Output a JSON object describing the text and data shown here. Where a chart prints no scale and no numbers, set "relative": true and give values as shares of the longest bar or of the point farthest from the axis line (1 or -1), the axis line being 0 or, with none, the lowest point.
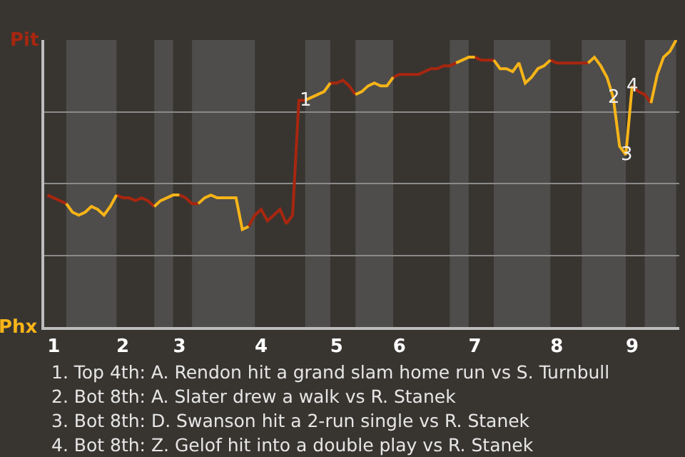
{
  "chart_data": {
    "type": "line",
    "relative": true,
    "categories": [
      null,
      "1",
      null,
      null,
      null,
      null,
      null,
      null,
      null,
      null,
      null,
      null,
      "2",
      null,
      null,
      null,
      null,
      null,
      null,
      null,
      null,
      "3",
      null,
      null,
      null,
      null,
      null,
      null,
      null,
      null,
      null,
      null,
      null,
      null,
      "4",
      null,
      null,
      null,
      null,
      null,
      null,
      null,
      null,
      null,
      null,
      null,
      "5",
      null,
      null,
      null,
      null,
      null,
      null,
      null,
      null,
      null,
      "6",
      null,
      null,
      null,
      null,
      null,
      null,
      null,
      null,
      null,
      null,
      null,
      "7",
      null,
      null,
      null,
      null,
      null,
      null,
      null,
      null,
      null,
      null,
      null,
      null,
      "8",
      null,
      null,
      null,
      null,
      null,
      null,
      null,
      null,
      null,
      null,
      null,
      "9",
      null,
      null,
      null,
      null,
      null,
      null,
      null
    ],
    "grid": "y",
    "marker": "none",
    "line_style": "solid",
    "series": [
      {
        "color": "#a8260f",
        "values": [
          0.46,
          0.45,
          0.44,
          0.43,
          null,
          null,
          null,
          null,
          null,
          null,
          null,
          0.46,
          0.45,
          0.45,
          0.44,
          0.45,
          0.44,
          0.42,
          null,
          null,
          null,
          0.46,
          0.45,
          0.43,
          0.43,
          null,
          null,
          null,
          null,
          null,
          null,
          null,
          0.35,
          0.39,
          0.41,
          0.37,
          0.39,
          0.41,
          0.36,
          0.39,
          0.79,
          0.79,
          null,
          null,
          null,
          0.85,
          0.85,
          0.86,
          0.84,
          0.81,
          null,
          null,
          null,
          null,
          null,
          0.87,
          0.88,
          0.88,
          0.88,
          0.88,
          0.89,
          0.9,
          0.9,
          0.91,
          0.91,
          0.92,
          null,
          null,
          0.94,
          0.93,
          0.93,
          0.93,
          null,
          null,
          null,
          null,
          null,
          null,
          null,
          null,
          0.93,
          0.92,
          0.92,
          0.92,
          0.92,
          0.92,
          0.92,
          null,
          null,
          null,
          null,
          null,
          null,
          0.84,
          0.82,
          0.81,
          0.78,
          null,
          null,
          null,
          null
        ]
      },
      {
        "color": "#f7b418",
        "values": [
          null,
          null,
          null,
          0.43,
          0.4,
          0.39,
          0.4,
          0.42,
          0.41,
          0.39,
          0.42,
          0.46,
          null,
          null,
          null,
          null,
          null,
          0.42,
          0.44,
          0.45,
          0.46,
          0.46,
          null,
          null,
          0.43,
          0.45,
          0.46,
          0.45,
          0.45,
          0.45,
          0.45,
          0.34,
          0.35,
          null,
          null,
          null,
          null,
          null,
          null,
          null,
          null,
          0.79,
          0.8,
          0.81,
          0.82,
          0.85,
          null,
          null,
          null,
          0.81,
          0.82,
          0.84,
          0.85,
          0.84,
          0.84,
          0.87,
          null,
          null,
          null,
          null,
          null,
          null,
          null,
          null,
          null,
          0.92,
          0.93,
          0.94,
          0.94,
          null,
          null,
          0.93,
          0.9,
          0.9,
          0.89,
          0.92,
          0.85,
          0.87,
          0.9,
          0.91,
          0.93,
          null,
          null,
          null,
          null,
          null,
          0.92,
          0.94,
          0.91,
          0.87,
          0.8,
          0.63,
          0.6,
          0.84,
          null,
          null,
          0.78,
          0.88,
          0.94,
          0.96,
          1.0
        ]
      }
    ],
    "annotations": [
      "Pit",
      "Phx",
      {
        "text": "1",
        "y": 0.79
      },
      {
        "text": "2",
        "y": 0.8
      },
      {
        "text": "3",
        "y": 0.6
      },
      {
        "text": "4",
        "y": 0.84
      },
      "1. Top 4th: A. Rendon hit a grand slam home run vs S. Turnbull",
      "2. Bot 8th: A. Slater drew a walk vs R. Stanek",
      "3. Bot 8th: D. Swanson hit a 2-run single vs R. Stanek",
      "4. Bot 8th: Z. Gelof hit into a double play vs R. Stanek"
    ]
  }
}
